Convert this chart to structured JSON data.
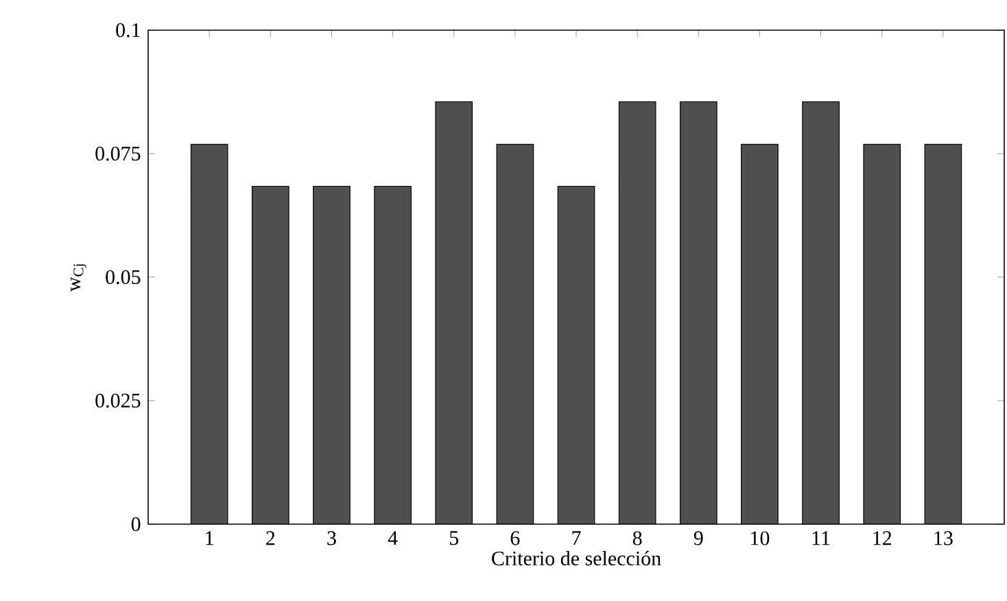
{
  "chart_data": {
    "type": "bar",
    "xlabel": "Criterio de selección",
    "ylabel": "w$_{Cj}$",
    "categories": [
      "1",
      "2",
      "3",
      "4",
      "5",
      "6",
      "7",
      "8",
      "9",
      "10",
      "11",
      "12",
      "13"
    ],
    "values": [
      0.0769,
      0.0684,
      0.0684,
      0.0684,
      0.0855,
      0.0769,
      0.0684,
      0.0855,
      0.0855,
      0.0769,
      0.0855,
      0.0769,
      0.0769
    ],
    "color": "#505050",
    "ylim": [
      0,
      0.1
    ],
    "yticks": [
      0,
      0.025,
      0.05,
      0.075,
      0.1
    ]
  }
}
